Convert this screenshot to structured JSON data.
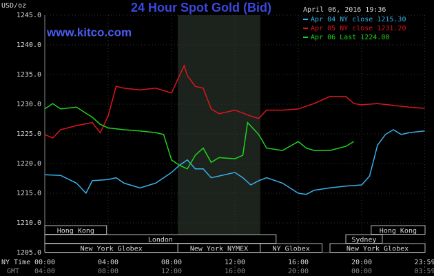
{
  "chart_data": {
    "type": "line",
    "title": "24 Hour Spot Gold (Bid)",
    "subtitle": "www.kitco.com",
    "timestamp": "April 06, 2016 19:36",
    "y_label": "USD/oz",
    "x_label": "NY Time",
    "x2_label": "GMT",
    "xlim": [
      0,
      24
    ],
    "ylim": [
      1205,
      1245
    ],
    "grid": true,
    "xticks": [
      {
        "value": 0,
        "label": "00:00"
      },
      {
        "value": 4,
        "label": "04:00"
      },
      {
        "value": 8,
        "label": "08:00"
      },
      {
        "value": 12,
        "label": "12:00"
      },
      {
        "value": 16,
        "label": "16:00"
      },
      {
        "value": 20,
        "label": "20:00"
      },
      {
        "value": 23.98,
        "label": "23:59"
      }
    ],
    "x2ticks": [
      {
        "value": 0,
        "label": "04:00"
      },
      {
        "value": 4,
        "label": "08:00"
      },
      {
        "value": 8,
        "label": "12:00"
      },
      {
        "value": 12,
        "label": "16:00"
      },
      {
        "value": 16,
        "label": "20:00"
      },
      {
        "value": 20,
        "label": "00:00"
      },
      {
        "value": 23.98,
        "label": "03:59"
      }
    ],
    "yticks": [
      {
        "value": 1205,
        "label": "1205.0"
      },
      {
        "value": 1210,
        "label": "1210.0"
      },
      {
        "value": 1215,
        "label": "1215.0"
      },
      {
        "value": 1220,
        "label": "1220.0"
      },
      {
        "value": 1225,
        "label": "1225.0"
      },
      {
        "value": 1230,
        "label": "1230.0"
      },
      {
        "value": 1235,
        "label": "1235.0"
      },
      {
        "value": 1240,
        "label": "1240.0"
      },
      {
        "value": 1245,
        "label": "1245.0"
      }
    ],
    "shaded_x": [
      8.4,
      13.6
    ],
    "sessions": [
      [
        {
          "label": "Hong Kong",
          "start": 0,
          "end": 3.9
        },
        {
          "label": "Hong Kong",
          "start": 20.6,
          "end": 24
        }
      ],
      [
        {
          "label": "London",
          "start": 0,
          "end": 14.6
        },
        {
          "label": "Sydney",
          "start": 19,
          "end": 21.3
        }
      ],
      [
        {
          "label": "New York Globex",
          "start": 0,
          "end": 8.4
        },
        {
          "label": "New York NYMEX",
          "start": 8.4,
          "end": 13.6
        },
        {
          "label": "NY Globex",
          "start": 13.6,
          "end": 17.5
        },
        {
          "label": "New York Globex",
          "start": 18,
          "end": 24
        }
      ]
    ],
    "series": [
      {
        "name": "Apr 04 NY close 1215.30",
        "color": "#3ab0e8",
        "x": [
          0,
          1,
          2,
          2.6,
          3,
          4,
          4.5,
          5,
          6,
          7,
          8,
          8.5,
          9,
          9.5,
          10,
          10.5,
          11,
          12,
          12.5,
          13,
          13.5,
          14,
          15,
          16,
          16.5,
          17,
          18,
          19,
          20,
          20.5,
          21,
          21.5,
          22,
          22.5,
          23,
          23.98
        ],
        "values": [
          1218.1,
          1218.0,
          1216.7,
          1215.0,
          1217.1,
          1217.3,
          1217.6,
          1216.7,
          1215.9,
          1216.7,
          1218.5,
          1219.7,
          1220.6,
          1219.1,
          1219.1,
          1217.6,
          1217.9,
          1218.5,
          1217.6,
          1216.4,
          1217.1,
          1217.6,
          1216.7,
          1215.0,
          1214.8,
          1215.5,
          1215.9,
          1216.2,
          1216.4,
          1217.9,
          1223.1,
          1224.9,
          1225.7,
          1224.9,
          1225.2,
          1225.5
        ]
      },
      {
        "name": "Apr 05 NY close 1231.20",
        "color": "#e0141e",
        "x": [
          0,
          0.5,
          1,
          2,
          3,
          3.5,
          4,
          4.5,
          5,
          6,
          7,
          8,
          8.5,
          8.8,
          9,
          9.5,
          10,
          10.5,
          11,
          12,
          13,
          13.5,
          14,
          15,
          16,
          17,
          18,
          19,
          19.5,
          20,
          21,
          22,
          23,
          23.98
        ],
        "values": [
          1224.9,
          1224.3,
          1225.7,
          1226.4,
          1226.9,
          1225.2,
          1228.0,
          1233.0,
          1232.7,
          1232.4,
          1232.7,
          1231.9,
          1234.8,
          1236.5,
          1234.8,
          1233.0,
          1232.7,
          1229.2,
          1228.4,
          1229.0,
          1228.0,
          1227.6,
          1229.0,
          1229.0,
          1229.2,
          1230.1,
          1231.3,
          1231.3,
          1230.1,
          1229.9,
          1230.1,
          1229.8,
          1229.5,
          1229.3
        ]
      },
      {
        "name": "Apr 06 Last 1224.00",
        "color": "#1ed41e",
        "x": [
          0,
          0.5,
          1,
          2,
          3,
          3.5,
          4,
          5,
          6,
          7,
          7.5,
          8,
          8.5,
          9,
          9.5,
          10,
          10.5,
          11,
          12,
          12.5,
          12.8,
          13.5,
          14,
          15,
          16,
          16.5,
          17,
          18,
          19,
          19.5
        ],
        "values": [
          1229.2,
          1230.1,
          1229.2,
          1229.5,
          1227.8,
          1226.6,
          1226.0,
          1225.7,
          1225.5,
          1225.2,
          1224.9,
          1220.6,
          1219.7,
          1219.1,
          1221.4,
          1222.6,
          1220.2,
          1221.0,
          1220.8,
          1221.4,
          1226.9,
          1224.9,
          1222.6,
          1222.2,
          1223.7,
          1222.6,
          1222.2,
          1222.2,
          1222.9,
          1223.7
        ]
      }
    ]
  }
}
